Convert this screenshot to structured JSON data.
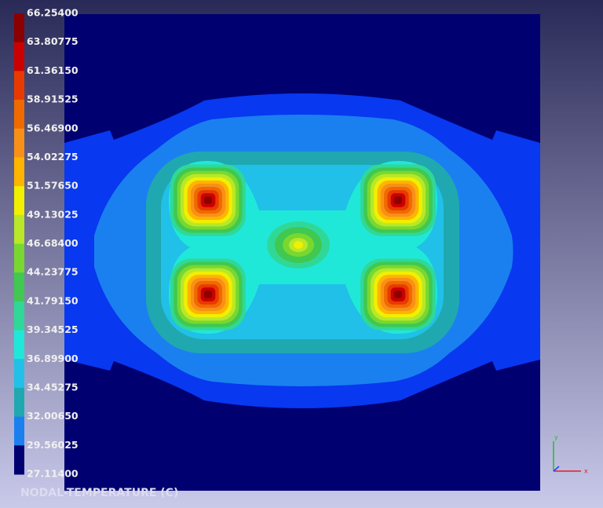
{
  "colorbar": {
    "labels": [
      "66.25400",
      "63.80775",
      "61.36150",
      "58.91525",
      "56.46900",
      "54.02275",
      "51.57650",
      "49.13025",
      "46.68400",
      "44.23775",
      "41.79150",
      "39.34525",
      "36.89900",
      "34.45275",
      "32.00650",
      "29.56025",
      "27.11400"
    ],
    "colors": [
      "#8b0000",
      "#cc0000",
      "#e83a00",
      "#f06a00",
      "#f89018",
      "#ffb400",
      "#f0f000",
      "#b8e828",
      "#78d830",
      "#40c850",
      "#30d898",
      "#20e8d8",
      "#20c0e8",
      "#20a8b0",
      "#1a80f0",
      "#0838f0",
      "#000070"
    ]
  },
  "title": "NODAL-TEMPERATURE (C)",
  "triad": {
    "y": "y",
    "x": "x"
  }
}
